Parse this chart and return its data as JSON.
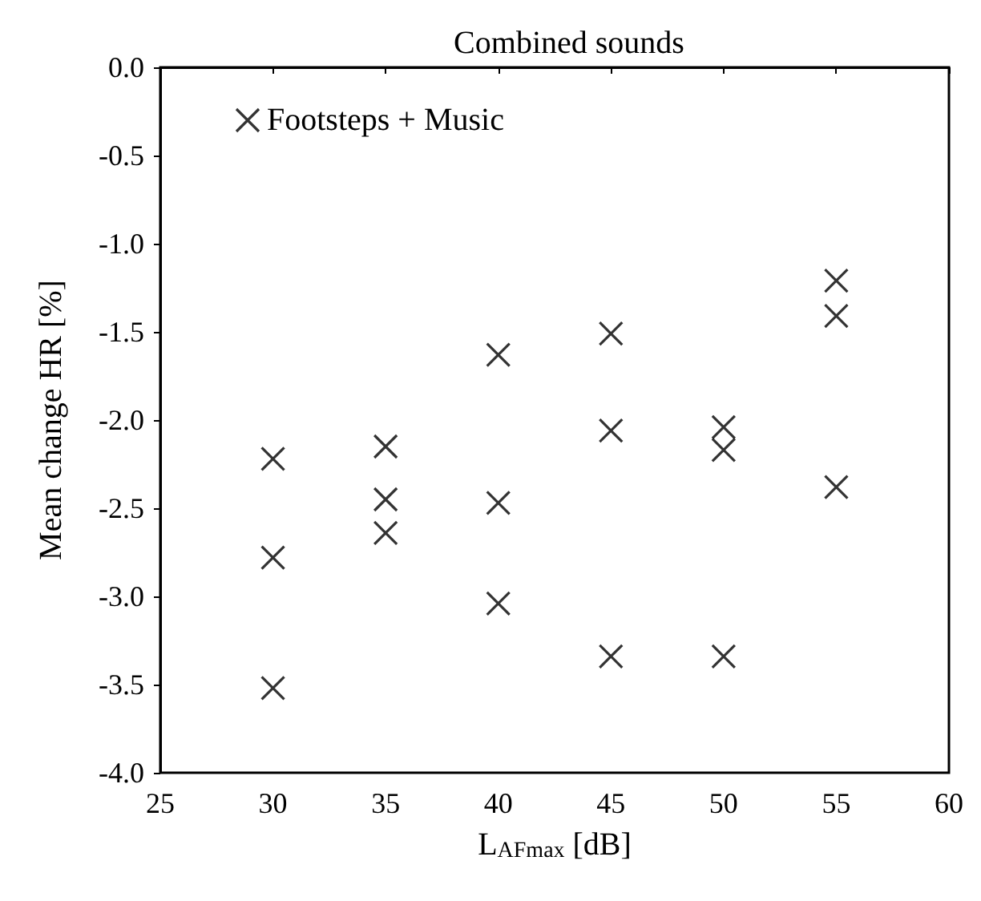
{
  "chart_data": {
    "type": "scatter",
    "title": "Combined sounds",
    "xlabel": "L$_{AFmax}$ [dB]",
    "ylabel": "Mean change HR [%]",
    "x": [
      30,
      30,
      30,
      35,
      35,
      35,
      40,
      40,
      40,
      45,
      45,
      45,
      50,
      50,
      50,
      55,
      55,
      55
    ],
    "series": [
      {
        "name": "Footsteps + Music",
        "color": "#000000",
        "values": [
          -2.22,
          -2.78,
          -3.52,
          -2.15,
          -2.45,
          -2.64,
          -1.63,
          -2.47,
          -3.04,
          -1.51,
          -2.06,
          -3.34,
          -2.04,
          -2.17,
          -3.34,
          -1.21,
          -1.41,
          -2.38
        ]
      }
    ],
    "marker": "cross",
    "legend": "top left",
    "grid": false,
    "xlim": [
      25,
      60
    ],
    "xticks": [
      25,
      30,
      35,
      40,
      45,
      50,
      55,
      60
    ],
    "ylim": [
      -4,
      0
    ],
    "yticks": [
      {
        "value": -4,
        "label": "-4.0"
      },
      {
        "value": -3.5,
        "label": "-3.5"
      },
      {
        "value": -3,
        "label": "-3.0"
      },
      {
        "value": -2.5,
        "label": "-2.5"
      },
      {
        "value": -2,
        "label": "-2.0"
      },
      {
        "value": -1.5,
        "label": "-1.5"
      },
      {
        "value": -1,
        "label": "-1.0"
      },
      {
        "value": -0.5,
        "label": "-0.5"
      },
      {
        "value": 0,
        "label": "0.0"
      }
    ]
  }
}
